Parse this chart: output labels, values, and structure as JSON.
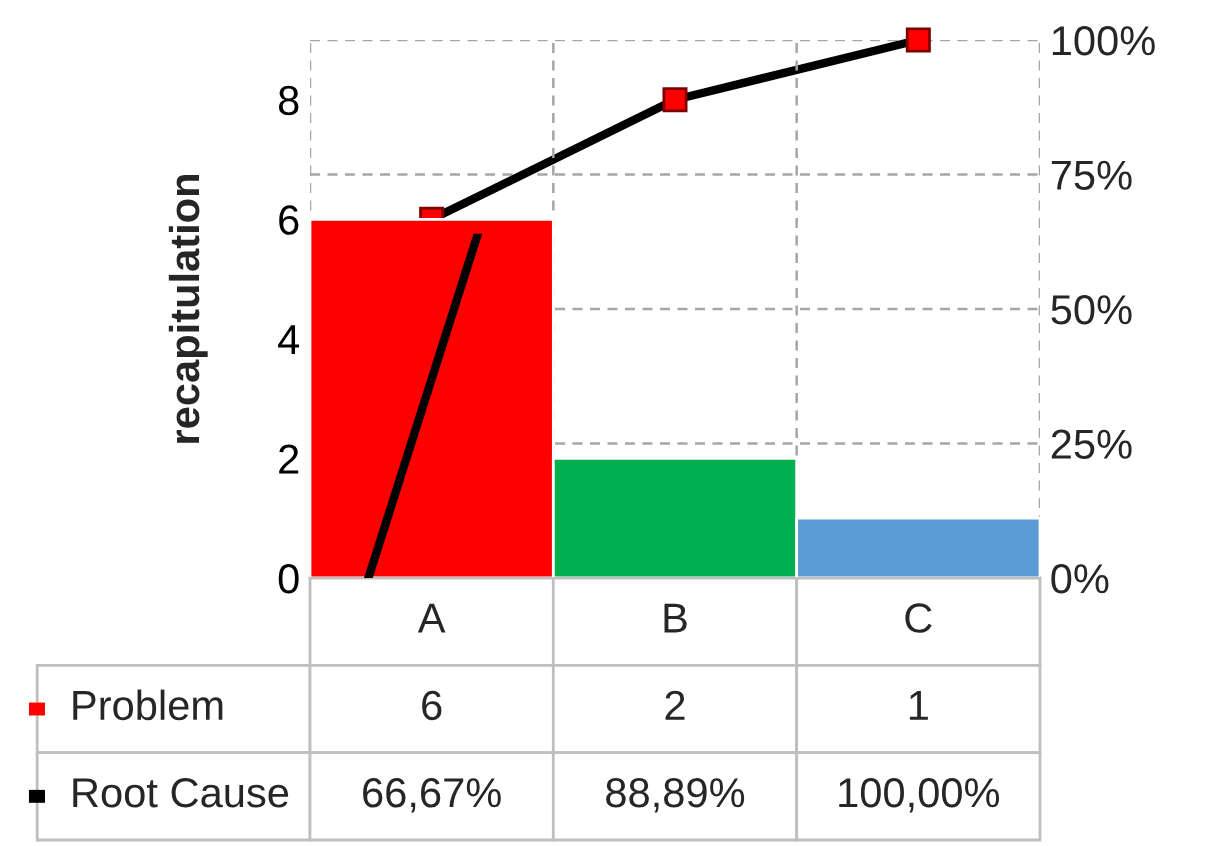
{
  "chart_data": {
    "type": "bar",
    "ylabel": "recapitulation",
    "categories": [
      "A",
      "B",
      "C"
    ],
    "series": [
      {
        "name": "Problem",
        "colors": [
          "#ff0000",
          "#00b050",
          "#5b9bd5"
        ],
        "values": [
          6,
          2,
          1
        ],
        "value_labels": [
          "6",
          "2",
          "1"
        ]
      },
      {
        "name": "Root Cause",
        "type": "line",
        "axis": "y2",
        "color": "#000000",
        "marker": "square",
        "values": [
          66.67,
          88.89,
          100
        ],
        "value_labels": [
          "66,67%",
          "88,89%",
          "100,00%"
        ]
      }
    ],
    "ylim": [
      0,
      9
    ],
    "yticks": [
      0,
      2,
      4,
      6,
      8
    ],
    "y2lim": [
      0,
      100
    ],
    "y2ticks": [
      {
        "value": 0,
        "label": "0%"
      },
      {
        "value": 25,
        "label": "25%"
      },
      {
        "value": 50,
        "label": "50%"
      },
      {
        "value": 75,
        "label": "75%"
      },
      {
        "value": 100,
        "label": "100%"
      }
    ],
    "grid": true,
    "legend": "bottom left"
  }
}
